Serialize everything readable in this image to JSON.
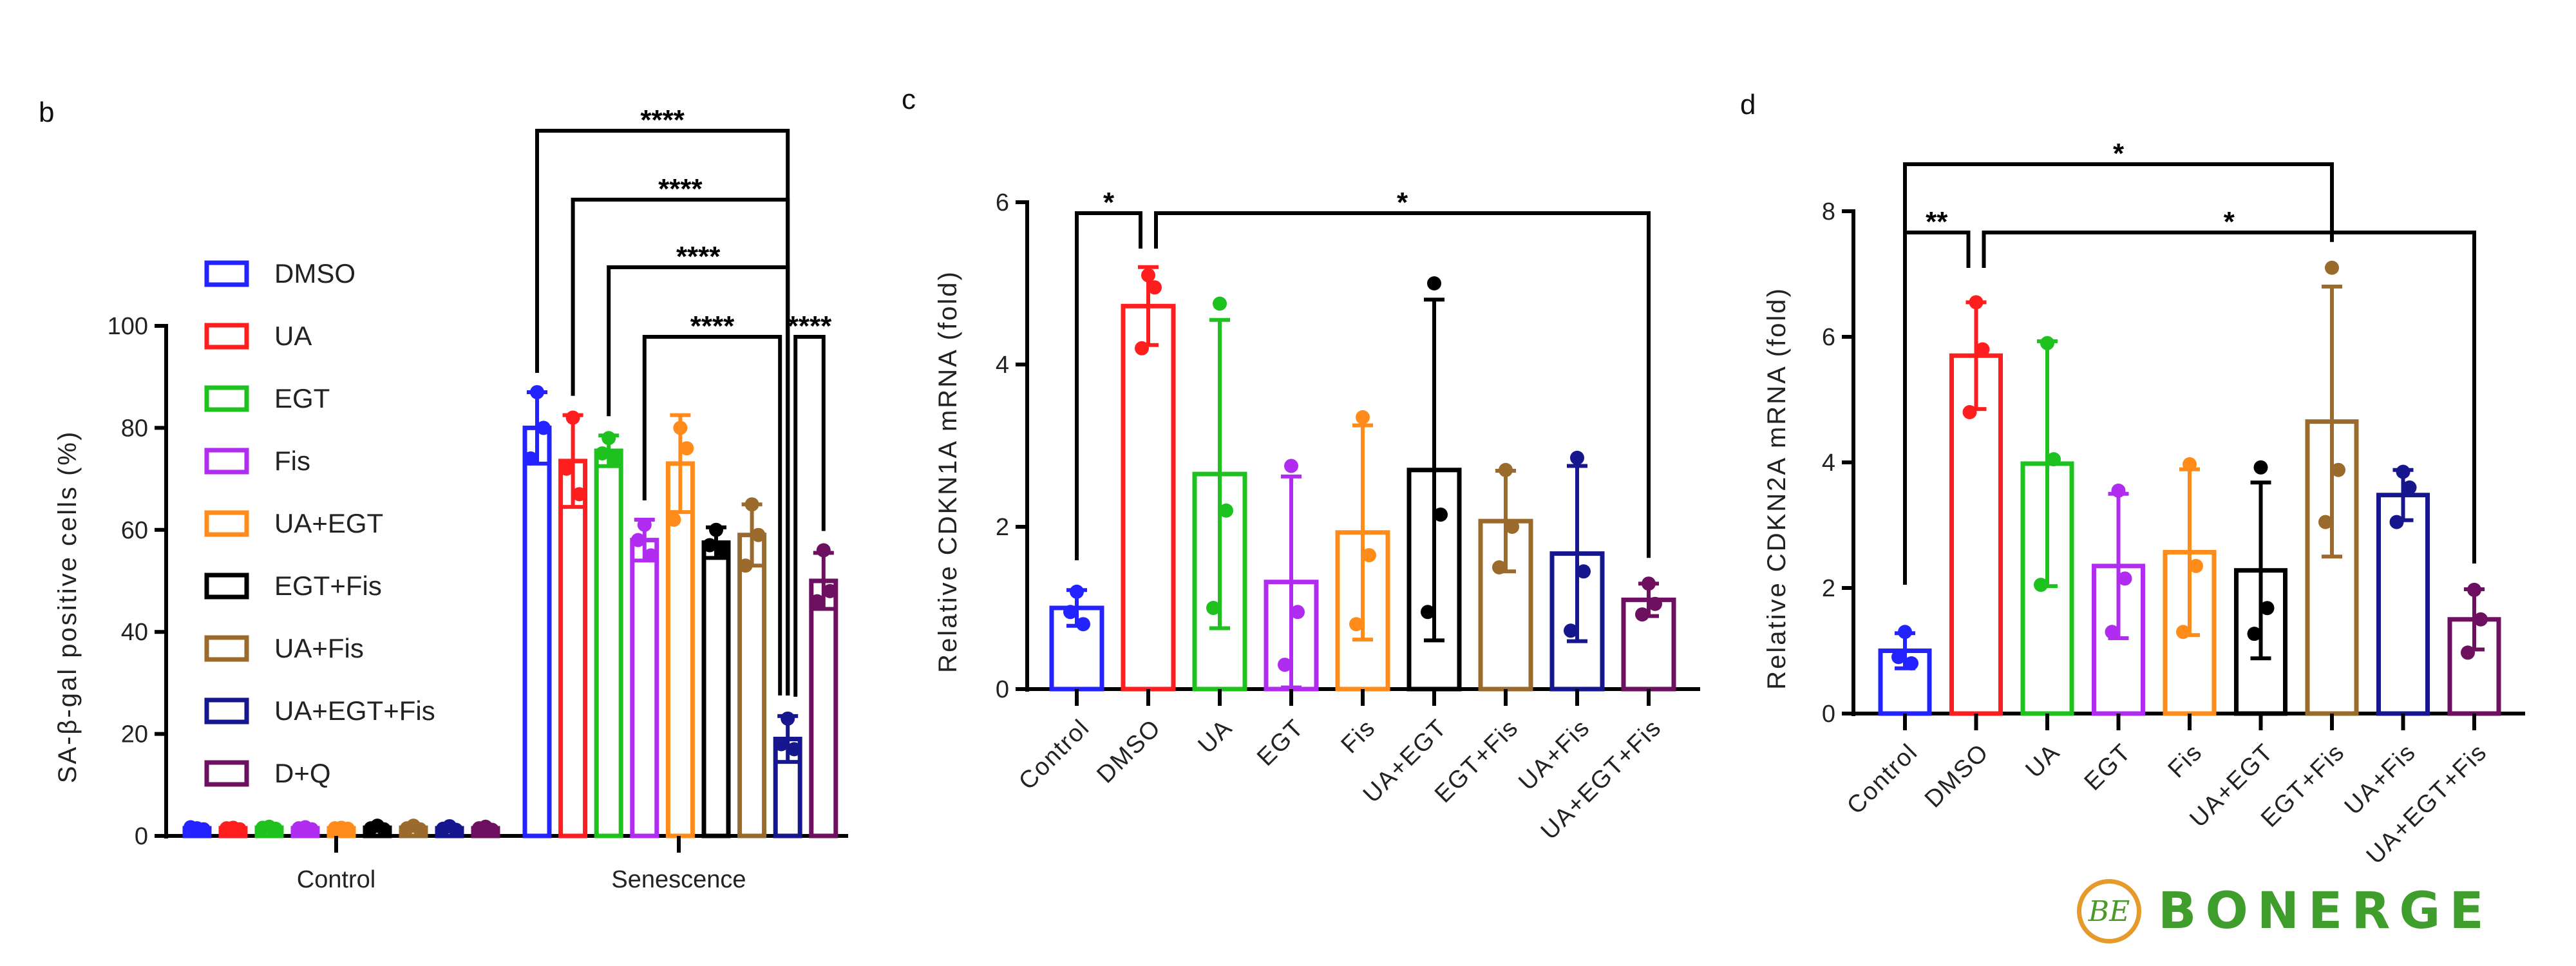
{
  "colors": [
    "#2323ff",
    "#ff1e1e",
    "#1ec21e",
    "#b02cf0",
    "#ff8c1a",
    "#000000",
    "#9a6b2c",
    "#16168f",
    "#6e1060"
  ],
  "logo": {
    "text": "BONERGE",
    "mark": "BE"
  },
  "chart_data": [
    {
      "panel": "b",
      "type": "bar",
      "ylabel": "SA-β-gal positive cells (%)",
      "ylim": [
        0,
        100
      ],
      "yticks": [
        0,
        20,
        40,
        60,
        80,
        100
      ],
      "categories": [
        "Control",
        "Senescence"
      ],
      "legend": [
        "DMSO",
        "UA",
        "EGT",
        "Fis",
        "UA+EGT",
        "EGT+Fis",
        "UA+Fis",
        "UA+EGT+Fis",
        "D+Q"
      ],
      "legend_position": "left-inside",
      "series": [
        {
          "name": "DMSO",
          "values": [
            1.5,
            80
          ],
          "sd": [
            0.3,
            7
          ],
          "points": [
            [
              1.5,
              1.3,
              1.7
            ],
            [
              87,
              80,
              74
            ]
          ]
        },
        {
          "name": "UA",
          "values": [
            1.5,
            73.5
          ],
          "sd": [
            0.3,
            9
          ],
          "points": [
            [
              1.6,
              1.3,
              1.5
            ],
            [
              82,
              67,
              72
            ]
          ]
        },
        {
          "name": "EGT",
          "values": [
            1.6,
            75.5
          ],
          "sd": [
            0.3,
            3
          ],
          "points": [
            [
              1.8,
              1.4,
              1.6
            ],
            [
              78,
              74,
              75
            ]
          ]
        },
        {
          "name": "Fis",
          "values": [
            1.5,
            58
          ],
          "sd": [
            0.3,
            4
          ],
          "points": [
            [
              1.7,
              1.3,
              1.5
            ],
            [
              61,
              55,
              58
            ]
          ]
        },
        {
          "name": "UA+EGT",
          "values": [
            1.5,
            73
          ],
          "sd": [
            0.3,
            9.5
          ],
          "points": [
            [
              1.6,
              1.4,
              1.5
            ],
            [
              80,
              76,
              62
            ]
          ]
        },
        {
          "name": "EGT+Fis",
          "values": [
            1.6,
            57.5
          ],
          "sd": [
            0.3,
            3
          ],
          "points": [
            [
              2,
              1.3,
              1.5
            ],
            [
              60,
              56,
              57
            ]
          ]
        },
        {
          "name": "UA+Fis",
          "values": [
            1.6,
            59
          ],
          "sd": [
            0.3,
            6
          ],
          "points": [
            [
              2,
              1.3,
              1.5
            ],
            [
              65,
              59,
              53
            ]
          ]
        },
        {
          "name": "UA+EGT+Fis",
          "values": [
            1.5,
            19
          ],
          "sd": [
            0.3,
            4.5
          ],
          "points": [
            [
              1.9,
              1.2,
              1.4
            ],
            [
              23,
              17,
              18
            ]
          ]
        },
        {
          "name": "D+Q",
          "values": [
            1.5,
            50
          ],
          "sd": [
            0.3,
            5.5
          ],
          "points": [
            [
              1.8,
              1.2,
              1.5
            ],
            [
              56,
              48,
              46
            ]
          ]
        }
      ],
      "comparisons": [
        {
          "group": "Senescence",
          "from": "DMSO",
          "to": "UA+EGT+Fis",
          "label": "****"
        },
        {
          "group": "Senescence",
          "from": "UA",
          "to": "UA+EGT+Fis",
          "label": "****"
        },
        {
          "group": "Senescence",
          "from": "EGT",
          "to": "UA+EGT+Fis",
          "label": "****"
        },
        {
          "group": "Senescence",
          "from": "Fis",
          "to": "UA+EGT+Fis",
          "label": "****"
        },
        {
          "group": "Senescence",
          "from": "UA+EGT+Fis",
          "to": "D+Q",
          "label": "****"
        }
      ]
    },
    {
      "panel": "c",
      "type": "bar",
      "ylabel": "Relative CDKN1A mRNA (fold)",
      "ylim": [
        0,
        6
      ],
      "yticks": [
        0,
        2,
        4,
        6
      ],
      "categories": [
        "Control",
        "DMSO",
        "UA",
        "EGT",
        "Fis",
        "UA+EGT",
        "EGT+Fis",
        "UA+Fis",
        "UA+EGT+Fis"
      ],
      "values": [
        1.0,
        4.72,
        2.65,
        1.32,
        1.93,
        2.7,
        2.07,
        1.67,
        1.1
      ],
      "sd": [
        0.22,
        0.48,
        1.9,
        1.3,
        1.32,
        2.1,
        0.62,
        1.08,
        0.2
      ],
      "points": [
        [
          1.2,
          0.8,
          0.95
        ],
        [
          5.1,
          4.95,
          4.2
        ],
        [
          4.75,
          2.2,
          1.0
        ],
        [
          2.75,
          0.95,
          0.3
        ],
        [
          3.35,
          1.65,
          0.8
        ],
        [
          5.0,
          2.15,
          0.95
        ],
        [
          2.7,
          2.0,
          1.5
        ],
        [
          2.85,
          1.45,
          0.72
        ],
        [
          1.3,
          1.05,
          0.92
        ]
      ],
      "comparisons": [
        {
          "from": "Control",
          "to": "DMSO",
          "label": "*"
        },
        {
          "from": "DMSO",
          "to": "UA+EGT+Fis",
          "label": "*"
        }
      ]
    },
    {
      "panel": "d",
      "type": "bar",
      "ylabel": "Relative CDKN2A mRNA (fold)",
      "ylim": [
        0,
        8
      ],
      "yticks": [
        0,
        2,
        4,
        6,
        8
      ],
      "categories": [
        "Control",
        "DMSO",
        "UA",
        "EGT",
        "Fis",
        "UA+EGT",
        "EGT+Fis",
        "UA+Fis",
        "UA+EGT+Fis"
      ],
      "values": [
        1.0,
        5.7,
        3.98,
        2.35,
        2.57,
        2.28,
        4.65,
        3.48,
        1.5
      ],
      "sd": [
        0.28,
        0.85,
        1.95,
        1.15,
        1.32,
        1.4,
        2.15,
        0.4,
        0.48
      ],
      "points": [
        [
          1.3,
          0.8,
          0.9
        ],
        [
          6.55,
          5.8,
          4.8
        ],
        [
          5.9,
          4.05,
          2.05
        ],
        [
          3.55,
          2.15,
          1.3
        ],
        [
          3.97,
          2.35,
          1.3
        ],
        [
          3.92,
          1.68,
          1.27
        ],
        [
          7.1,
          3.88,
          3.05
        ],
        [
          3.85,
          3.6,
          3.05
        ],
        [
          1.97,
          1.5,
          0.97
        ]
      ],
      "comparisons": [
        {
          "from": "Control",
          "to": "EGT+Fis",
          "label": "*"
        },
        {
          "from": "Control",
          "to": "DMSO",
          "label": "**"
        },
        {
          "from": "DMSO",
          "to": "UA+EGT+Fis",
          "label": "*"
        }
      ]
    }
  ]
}
